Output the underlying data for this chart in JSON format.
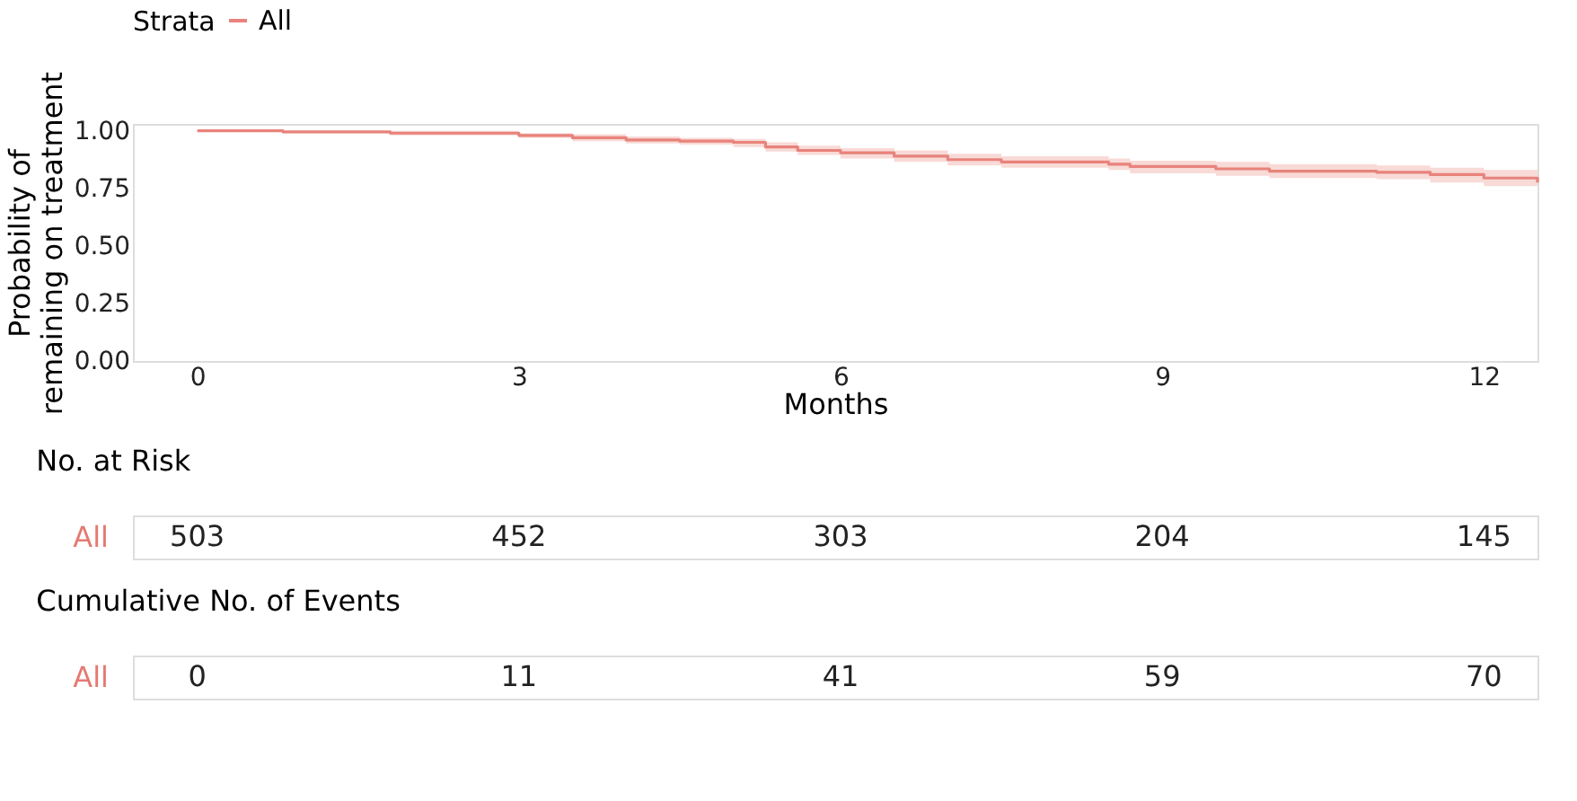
{
  "chart_data": [
    {
      "type": "step",
      "xlabel": "Months",
      "ylabel": "Probability of\nremaining on treatment",
      "legend_title": "Strata",
      "legend": "top",
      "xlim": [
        -0.6,
        12.5
      ],
      "xticks": [
        0,
        3,
        6,
        9,
        12
      ],
      "ylim": [
        0,
        1.03
      ],
      "yticks": [
        {
          "value": 0,
          "label": "0.00"
        },
        {
          "value": 0.25,
          "label": "0.25"
        },
        {
          "value": 0.5,
          "label": "0.50"
        },
        {
          "value": 0.75,
          "label": "0.75"
        },
        {
          "value": 1,
          "label": "1.00"
        }
      ],
      "grid": false,
      "series": [
        {
          "name": "All",
          "color": "#e8837c",
          "x": [
            0,
            0.8,
            1.8,
            3,
            3.5,
            4,
            4.5,
            5,
            5.3,
            5.6,
            6,
            6.5,
            7,
            7.5,
            8.5,
            8.7,
            9.5,
            10,
            11,
            11.5,
            12,
            12.5
          ],
          "values": [
            1.0,
            0.995,
            0.99,
            0.98,
            0.97,
            0.96,
            0.955,
            0.95,
            0.93,
            0.915,
            0.905,
            0.89,
            0.875,
            0.865,
            0.855,
            0.845,
            0.835,
            0.825,
            0.82,
            0.81,
            0.795,
            0.775
          ],
          "lower": [
            1.0,
            0.99,
            0.98,
            0.97,
            0.955,
            0.945,
            0.94,
            0.93,
            0.91,
            0.895,
            0.88,
            0.865,
            0.85,
            0.84,
            0.83,
            0.815,
            0.805,
            0.795,
            0.79,
            0.775,
            0.76,
            0.74
          ],
          "upper": [
            1.0,
            1.0,
            1.0,
            0.99,
            0.985,
            0.975,
            0.97,
            0.965,
            0.95,
            0.935,
            0.925,
            0.915,
            0.9,
            0.89,
            0.88,
            0.87,
            0.865,
            0.855,
            0.85,
            0.84,
            0.83,
            0.81
          ]
        }
      ]
    },
    {
      "type": "other",
      "title": "No. at Risk",
      "y_categories": [
        "All"
      ],
      "values": [
        503,
        452,
        303,
        204,
        145
      ],
      "color": "#e47a72",
      "data_labels": true
    },
    {
      "type": "other",
      "title": "Cumulative No. of Events",
      "y_categories": [
        "All"
      ],
      "values": [
        0,
        11,
        41,
        59,
        70
      ],
      "color": "#e47a72",
      "data_labels": true
    }
  ]
}
